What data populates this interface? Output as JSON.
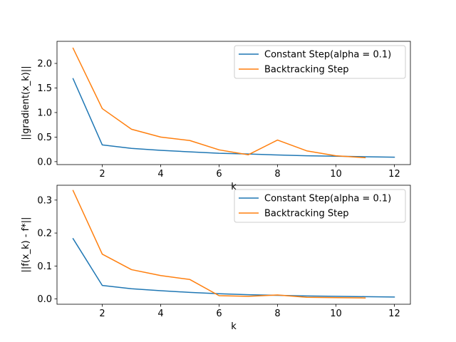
{
  "chart_data": [
    {
      "type": "line",
      "xlabel": "k",
      "ylabel": "||gradient(x_k)||",
      "xlim": [
        0.45,
        12.55
      ],
      "ylim": [
        -0.06,
        2.45
      ],
      "xticks": [
        2,
        4,
        6,
        8,
        10,
        12
      ],
      "yticks": [
        0.0,
        0.5,
        1.0,
        1.5,
        2.0
      ],
      "ytick_labels": [
        "0.0",
        "0.5",
        "1.0",
        "1.5",
        "2.0"
      ],
      "legend_position": "top-right",
      "series": [
        {
          "name": "Constant Step(alpha = 0.1)",
          "color": "#1f77b4",
          "x": [
            1,
            2,
            3,
            4,
            5,
            6,
            7,
            8,
            9,
            10,
            11,
            12
          ],
          "y": [
            1.69,
            0.34,
            0.27,
            0.23,
            0.2,
            0.17,
            0.155,
            0.135,
            0.12,
            0.11,
            0.1,
            0.09
          ]
        },
        {
          "name": "Backtracking Step",
          "color": "#ff7f0e",
          "x": [
            1,
            2,
            3,
            4,
            5,
            6,
            7,
            8,
            9,
            10,
            11
          ],
          "y": [
            2.31,
            1.08,
            0.66,
            0.5,
            0.43,
            0.24,
            0.14,
            0.44,
            0.22,
            0.12,
            0.08
          ]
        }
      ]
    },
    {
      "type": "line",
      "xlabel": "k",
      "ylabel": "||f(x_k) - f*||",
      "xlim": [
        0.45,
        12.55
      ],
      "ylim": [
        -0.016,
        0.345
      ],
      "xticks": [
        2,
        4,
        6,
        8,
        10,
        12
      ],
      "yticks": [
        0.0,
        0.1,
        0.2,
        0.3
      ],
      "ytick_labels": [
        "0.0",
        "0.1",
        "0.2",
        "0.3"
      ],
      "legend_position": "top-right",
      "series": [
        {
          "name": "Constant Step(alpha = 0.1)",
          "color": "#1f77b4",
          "x": [
            1,
            2,
            3,
            4,
            5,
            6,
            7,
            8,
            9,
            10,
            11,
            12
          ],
          "y": [
            0.183,
            0.041,
            0.031,
            0.025,
            0.02,
            0.016,
            0.013,
            0.011,
            0.009,
            0.008,
            0.007,
            0.006
          ]
        },
        {
          "name": "Backtracking Step",
          "color": "#ff7f0e",
          "x": [
            1,
            2,
            3,
            4,
            5,
            6,
            7,
            8,
            9,
            10,
            11
          ],
          "y": [
            0.329,
            0.136,
            0.089,
            0.071,
            0.059,
            0.01,
            0.008,
            0.012,
            0.005,
            0.004,
            0.003
          ]
        }
      ]
    }
  ]
}
